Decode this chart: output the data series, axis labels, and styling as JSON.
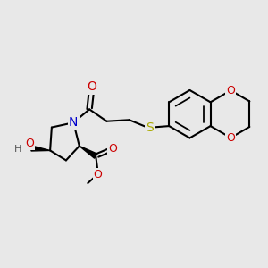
{
  "background_color": "#e8e8e8",
  "bond_color": "#000000",
  "bond_width": 1.5,
  "atom_colors": {
    "O": "#cc0000",
    "N": "#0000cc",
    "S": "#aaaa00",
    "H": "#555555",
    "C": "#000000"
  },
  "font_size": 9,
  "fig_width": 3.0,
  "fig_height": 3.0,
  "dpi": 100
}
